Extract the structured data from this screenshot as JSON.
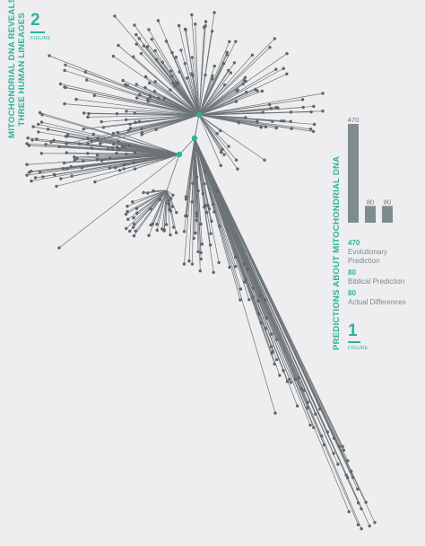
{
  "figure2": {
    "title_line1": "Mitochondrial DNA Reveals",
    "title_line2": "Three Human Lineages",
    "number": "2",
    "figure_word": "Figure"
  },
  "figure1": {
    "title": "Predictions About Mitochondrial DNA",
    "number": "1",
    "figure_word": "Figure",
    "legend": [
      {
        "value": "470",
        "label_line1": "Evolutionary",
        "label_line2": "Prediction"
      },
      {
        "value": "80",
        "label_line1": "Biblical Prediction",
        "label_line2": ""
      },
      {
        "value": "80",
        "label_line1": "Actual Differences",
        "label_line2": ""
      }
    ]
  },
  "colors": {
    "accent": "#2db39a",
    "bar": "#7f8c8d",
    "tree": "#6d7475",
    "background": "#eeeef0"
  },
  "chart_data": [
    {
      "type": "bar",
      "categories": [
        "",
        "",
        ""
      ],
      "values": [
        470,
        80,
        80
      ],
      "data_labels": [
        "470",
        "80",
        "80"
      ],
      "title": "Predictions About Mitochondrial DNA",
      "xlabel": "",
      "ylabel": "",
      "ylim": [
        0,
        470
      ],
      "grid": false,
      "legend": "below"
    },
    {
      "type": "diagram",
      "title": "Mitochondrial DNA Reveals Three Human Lineages",
      "lineages": 3,
      "hub_color": "#2db39a"
    }
  ]
}
